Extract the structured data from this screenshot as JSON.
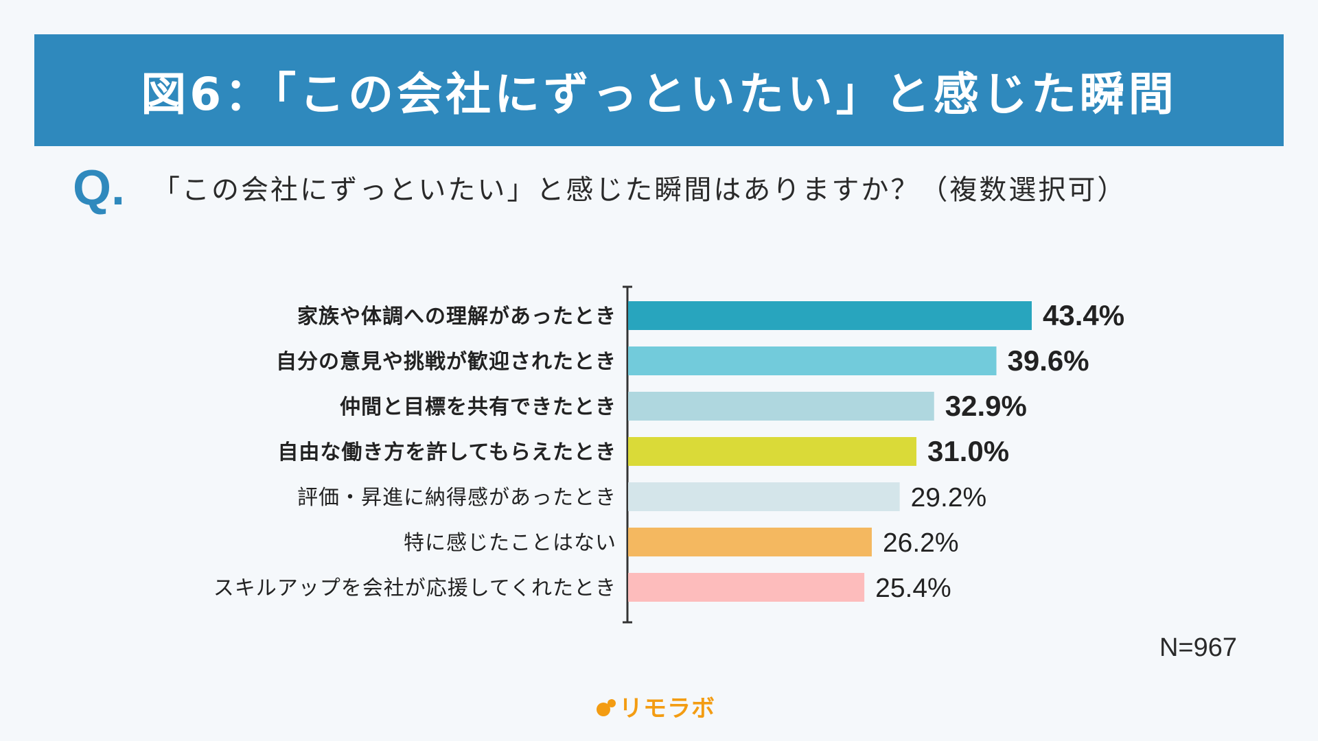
{
  "title": "図6：「この会社にずっといたい」と感じた瞬間",
  "question_mark": "Q.",
  "question": "「この会社にずっといたい」と感じた瞬間はありますか？（複数選択可）",
  "n_label": "N=967",
  "brand": {
    "name": "リモラボ",
    "logo_icon": "orange-dots-icon",
    "color": "#f39c12"
  },
  "colors": {
    "banner": "#2f89bd",
    "axis": "#333333"
  },
  "chart_data": {
    "type": "bar",
    "orientation": "horizontal",
    "title": "",
    "xlabel": "",
    "ylabel": "",
    "xlim": [
      0,
      50
    ],
    "categories": [
      "家族や体調への理解があったとき",
      "自分の意見や挑戦が歓迎されたとき",
      "仲間と目標を共有できたとき",
      "自由な働き方を許してもらえたとき",
      "評価・昇進に納得感があったとき",
      "特に感じたことはない",
      "スキルアップを会社が応援してくれたとき"
    ],
    "values": [
      43.4,
      39.6,
      32.9,
      31.0,
      29.2,
      26.2,
      25.4
    ],
    "value_labels": [
      "43.4%",
      "39.6%",
      "32.9%",
      "31.0%",
      "29.2%",
      "26.2%",
      "25.4%"
    ],
    "bar_colors": [
      "#28a5be",
      "#72cbdb",
      "#afd7df",
      "#dada38",
      "#d4e5ea",
      "#f4b860",
      "#fdbcbc"
    ],
    "emphasized": [
      true,
      true,
      true,
      true,
      false,
      false,
      false
    ]
  }
}
